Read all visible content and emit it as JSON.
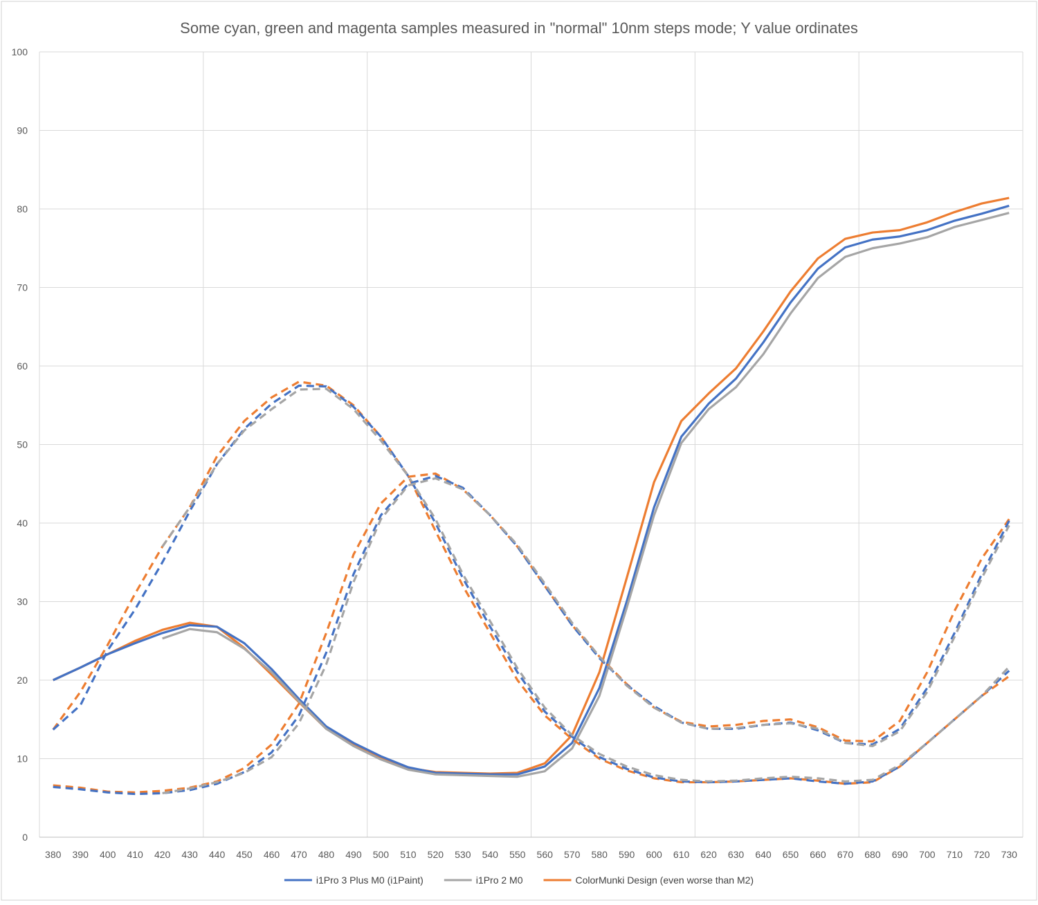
{
  "chart_data": {
    "type": "line",
    "title": "Some cyan, green and magenta samples measured in \"normal\" 10nm steps mode; Y value ordinates",
    "xlabel": "",
    "ylabel": "",
    "x": [
      380,
      390,
      400,
      410,
      420,
      430,
      440,
      450,
      460,
      470,
      480,
      490,
      500,
      510,
      520,
      530,
      540,
      550,
      560,
      570,
      580,
      590,
      600,
      610,
      620,
      630,
      640,
      650,
      660,
      670,
      680,
      690,
      700,
      710,
      720,
      730
    ],
    "ylim": [
      0,
      100
    ],
    "yticks": [
      0,
      10,
      20,
      30,
      40,
      50,
      60,
      70,
      80,
      90,
      100
    ],
    "grid": true,
    "legend_position": "bottom",
    "legend": [
      {
        "name": "i1Pro 3 Plus M0 (i1Paint)",
        "color": "#4472C4"
      },
      {
        "name": "i1Pro 2 M0",
        "color": "#A5A5A5"
      },
      {
        "name": "ColorMunki Design (even worse than M2)",
        "color": "#ED7D31"
      }
    ],
    "series": [
      {
        "sample": "magenta",
        "instrument": 2,
        "dashed": false,
        "values": [
          20.0,
          21.6,
          23.3,
          25.0,
          26.4,
          27.3,
          26.8,
          24.1,
          20.7,
          17.2,
          13.8,
          11.8,
          10.1,
          8.8,
          8.3,
          8.2,
          8.1,
          8.2,
          9.4,
          13.0,
          21.0,
          33.0,
          45.2,
          53.0,
          56.5,
          59.7,
          64.4,
          69.5,
          73.7,
          76.2,
          77.0,
          77.3,
          78.3,
          79.6,
          80.7,
          81.4
        ]
      },
      {
        "sample": "magenta",
        "instrument": 0,
        "dashed": false,
        "values": [
          20.0,
          21.6,
          23.3,
          24.7,
          26.0,
          27.0,
          26.8,
          24.7,
          21.4,
          17.6,
          14.1,
          12.0,
          10.3,
          8.9,
          8.2,
          8.1,
          8.0,
          8.0,
          9.0,
          12.0,
          19.0,
          30.0,
          42.0,
          51.0,
          55.2,
          58.4,
          63.0,
          68.1,
          72.4,
          75.1,
          76.1,
          76.5,
          77.3,
          78.5,
          79.4,
          80.4
        ]
      },
      {
        "sample": "magenta",
        "instrument": 1,
        "dashed": false,
        "values": [
          null,
          null,
          null,
          null,
          25.3,
          26.5,
          26.1,
          24.0,
          21.0,
          17.3,
          13.8,
          11.6,
          9.9,
          8.6,
          8.0,
          7.9,
          7.8,
          7.7,
          8.4,
          11.3,
          18.0,
          29.2,
          41.0,
          50.2,
          54.5,
          57.3,
          61.5,
          66.7,
          71.2,
          73.9,
          75.0,
          75.6,
          76.4,
          77.7,
          78.6,
          79.5
        ]
      },
      {
        "sample": "cyan",
        "instrument": 2,
        "dashed": true,
        "values": [
          13.7,
          18.5,
          24.5,
          31.0,
          37.0,
          42.0,
          48.5,
          53.0,
          56.0,
          58.0,
          57.5,
          55.0,
          51.0,
          46.0,
          39.0,
          32.0,
          26.0,
          20.0,
          15.5,
          12.5,
          10.0,
          8.5,
          7.5,
          7.0,
          7.0,
          7.1,
          7.3,
          7.5,
          7.2,
          6.8,
          7.0,
          9.0,
          12.0,
          15.0,
          18.0,
          20.5
        ]
      },
      {
        "sample": "cyan",
        "instrument": 0,
        "dashed": true,
        "values": [
          13.7,
          16.8,
          23.8,
          29.0,
          35.0,
          41.5,
          47.5,
          52.0,
          55.2,
          57.5,
          57.4,
          54.8,
          51.0,
          46.0,
          40.0,
          33.0,
          26.8,
          21.0,
          16.0,
          12.8,
          10.2,
          8.7,
          7.6,
          7.1,
          7.0,
          7.1,
          7.3,
          7.5,
          7.1,
          6.8,
          7.1,
          9.0,
          12.0,
          15.0,
          18.0,
          21.2
        ]
      },
      {
        "sample": "cyan",
        "instrument": 1,
        "dashed": true,
        "values": [
          null,
          null,
          null,
          null,
          37.0,
          42.0,
          47.5,
          51.8,
          54.5,
          57.0,
          57.1,
          54.5,
          50.5,
          46.0,
          40.5,
          33.5,
          27.5,
          21.5,
          16.5,
          13.0,
          10.6,
          9.0,
          7.9,
          7.3,
          7.1,
          7.2,
          7.5,
          7.7,
          7.5,
          7.1,
          7.3,
          9.2,
          12.0,
          15.0,
          18.0,
          21.7
        ]
      },
      {
        "sample": "green",
        "instrument": 2,
        "dashed": true,
        "values": [
          6.6,
          6.3,
          5.8,
          5.7,
          5.9,
          6.3,
          7.1,
          8.8,
          11.8,
          17.0,
          26.0,
          36.0,
          42.5,
          45.9,
          46.3,
          44.3,
          41.0,
          37.0,
          32.0,
          27.0,
          23.0,
          19.5,
          16.5,
          14.7,
          14.1,
          14.3,
          14.8,
          15.0,
          14.0,
          12.3,
          12.2,
          14.8,
          21.0,
          28.8,
          35.5,
          40.5
        ]
      },
      {
        "sample": "green",
        "instrument": 0,
        "dashed": true,
        "values": [
          6.4,
          6.1,
          5.7,
          5.5,
          5.6,
          6.0,
          6.8,
          8.3,
          10.8,
          15.5,
          23.5,
          33.5,
          41.0,
          45.0,
          46.0,
          44.5,
          41.0,
          37.0,
          32.0,
          27.0,
          22.8,
          19.4,
          16.7,
          14.6,
          13.8,
          13.8,
          14.3,
          14.6,
          13.6,
          12.0,
          11.8,
          13.8,
          19.0,
          26.0,
          33.5,
          40.3
        ]
      },
      {
        "sample": "green",
        "instrument": 1,
        "dashed": true,
        "values": [
          null,
          null,
          null,
          null,
          5.6,
          6.2,
          7.0,
          8.2,
          10.2,
          14.5,
          22.0,
          32.5,
          40.5,
          44.8,
          45.7,
          44.3,
          41.0,
          37.2,
          32.3,
          27.3,
          23.0,
          19.3,
          16.5,
          14.6,
          13.8,
          13.9,
          14.3,
          14.5,
          13.8,
          12.0,
          11.6,
          13.5,
          18.5,
          25.5,
          33.0,
          39.7
        ]
      }
    ]
  }
}
